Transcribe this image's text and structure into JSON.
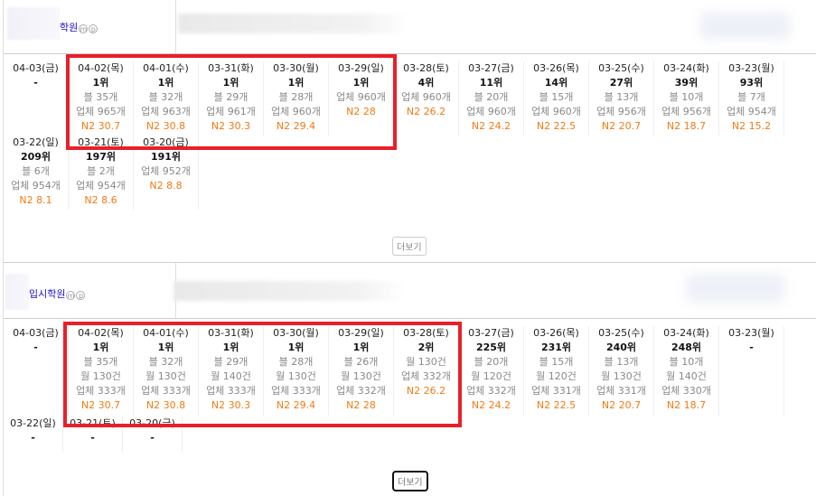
{
  "sections": [
    {
      "name": "학원",
      "icons": [
        "m",
        "p"
      ],
      "more_label": "더보기",
      "rows": [
        [
          {
            "date": "04-03(금)",
            "rank": "-",
            "lines": [],
            "n2": ""
          },
          {
            "date": "04-02(목)",
            "rank": "1위",
            "lines": [
              "블 35개",
              "업체 965개"
            ],
            "n2": "N2 30.7"
          },
          {
            "date": "04-01(수)",
            "rank": "1위",
            "lines": [
              "블 32개",
              "업체 963개"
            ],
            "n2": "N2 30.8"
          },
          {
            "date": "03-31(화)",
            "rank": "1위",
            "lines": [
              "블 29개",
              "업체 961개"
            ],
            "n2": "N2 30.3"
          },
          {
            "date": "03-30(월)",
            "rank": "1위",
            "lines": [
              "블 28개",
              "업체 960개"
            ],
            "n2": "N2 29.4"
          },
          {
            "date": "03-29(일)",
            "rank": "1위",
            "lines": [
              "업체 960개"
            ],
            "n2": "N2 28"
          },
          {
            "date": "03-28(토)",
            "rank": "4위",
            "lines": [
              "업체 960개"
            ],
            "n2": "N2 26.2"
          },
          {
            "date": "03-27(금)",
            "rank": "11위",
            "lines": [
              "블 20개",
              "업체 960개"
            ],
            "n2": "N2 24.2"
          },
          {
            "date": "03-26(목)",
            "rank": "14위",
            "lines": [
              "블 15개",
              "업체 960개"
            ],
            "n2": "N2 22.5"
          },
          {
            "date": "03-25(수)",
            "rank": "27위",
            "lines": [
              "블 13개",
              "업체 956개"
            ],
            "n2": "N2 20.7"
          },
          {
            "date": "03-24(화)",
            "rank": "39위",
            "lines": [
              "블 10개",
              "업체 956개"
            ],
            "n2": "N2 18.7"
          },
          {
            "date": "03-23(월)",
            "rank": "93위",
            "lines": [
              "블 7개",
              "업체 954개"
            ],
            "n2": "N2 15.2"
          }
        ],
        [
          {
            "date": "03-22(일)",
            "rank": "209위",
            "lines": [
              "블 6개",
              "업체 954개"
            ],
            "n2": "N2 8.1"
          },
          {
            "date": "03-21(토)",
            "rank": "197위",
            "lines": [
              "블 2개",
              "업체 954개"
            ],
            "n2": "N2 8.6"
          },
          {
            "date": "03-20(금)",
            "rank": "191위",
            "lines": [
              "업체 952개"
            ],
            "n2": "N2 8.8"
          }
        ]
      ]
    },
    {
      "name": "입시학원",
      "icons": [
        "m",
        "p"
      ],
      "more_label": "더보기",
      "rows": [
        [
          {
            "date": "04-03(금)",
            "rank": "-",
            "lines": [],
            "n2": ""
          },
          {
            "date": "04-02(목)",
            "rank": "1위",
            "lines": [
              "블 35개",
              "월 130건",
              "업체 333개"
            ],
            "n2": "N2 30.7"
          },
          {
            "date": "04-01(수)",
            "rank": "1위",
            "lines": [
              "블 32개",
              "월 130건",
              "업체 333개"
            ],
            "n2": "N2 30.8"
          },
          {
            "date": "03-31(화)",
            "rank": "1위",
            "lines": [
              "블 29개",
              "월 140건",
              "업체 333개"
            ],
            "n2": "N2 30.3"
          },
          {
            "date": "03-30(월)",
            "rank": "1위",
            "lines": [
              "블 28개",
              "월 130건",
              "업체 333개"
            ],
            "n2": "N2 29.4"
          },
          {
            "date": "03-29(일)",
            "rank": "1위",
            "lines": [
              "블 26개",
              "월 130건",
              "업체 332개"
            ],
            "n2": "N2 28"
          },
          {
            "date": "03-28(토)",
            "rank": "2위",
            "lines": [
              "월 130건",
              "업체 332개"
            ],
            "n2": "N2 26.2"
          },
          {
            "date": "03-27(금)",
            "rank": "225위",
            "lines": [
              "블 20개",
              "월 120건",
              "업체 332개"
            ],
            "n2": "N2 24.2"
          },
          {
            "date": "03-26(목)",
            "rank": "231위",
            "lines": [
              "블 15개",
              "월 120건",
              "업체 331개"
            ],
            "n2": "N2 22.5"
          },
          {
            "date": "03-25(수)",
            "rank": "240위",
            "lines": [
              "블 13개",
              "월 130건",
              "업체 331개"
            ],
            "n2": "N2 20.7"
          },
          {
            "date": "03-24(화)",
            "rank": "248위",
            "lines": [
              "블 10개",
              "월 140건",
              "업체 330개"
            ],
            "n2": "N2 18.7"
          },
          {
            "date": "03-23(월)",
            "rank": "-",
            "lines": [],
            "n2": ""
          }
        ],
        [
          {
            "date": "03-22(일)",
            "rank": "-",
            "lines": [],
            "n2": ""
          },
          {
            "date": "03-21(토)",
            "rank": "-",
            "lines": [],
            "n2": ""
          },
          {
            "date": "03-20(금)",
            "rank": "-",
            "lines": [],
            "n2": ""
          }
        ]
      ]
    }
  ],
  "colors": {
    "highlight": "#e8202a",
    "n2": "#f37a12",
    "link": "#1a0dcc"
  }
}
